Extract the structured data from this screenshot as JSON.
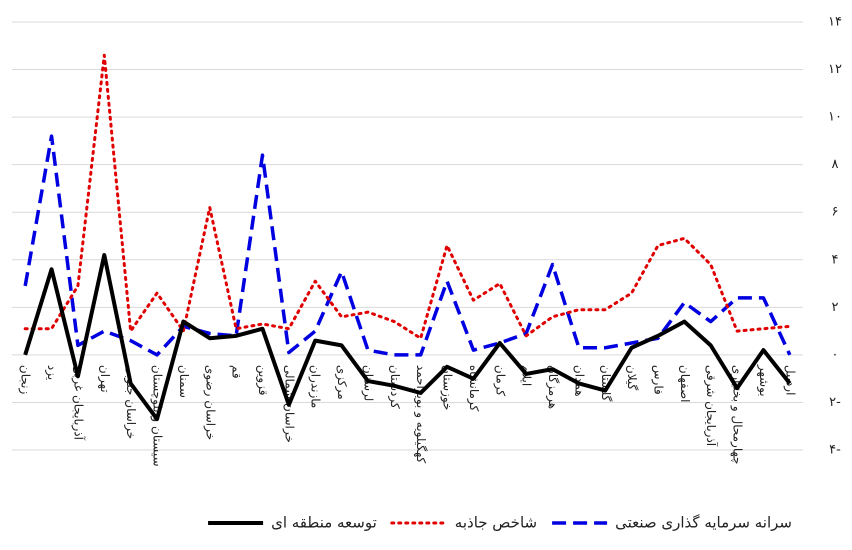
{
  "chart_data": {
    "type": "line",
    "categories": [
      "زنجان",
      "یزد",
      "آذربایجان غربی",
      "تهران",
      "خراسان جنوبی",
      "سیستان و بلوچستان",
      "سمنان",
      "خراسان رضوی",
      "قم",
      "قزوین",
      "خراسان شمالی",
      "مازندران",
      "مرکزی",
      "لرستان",
      "کردستان",
      "کهگیلویه و بویراحمد",
      "خوزستان",
      "کرمانشاه",
      "کرمان",
      "ایلام",
      "هرمزگان",
      "همدان",
      "گلستان",
      "گیلان",
      "فارس",
      "اصفهان",
      "آذربایجان شرقی",
      "چهارمحال و بختیاری",
      "بوشهر",
      "اردبیل"
    ],
    "series": [
      {
        "name": "سرانه سرمایه گذاری صنعتی",
        "color": "#0000e0",
        "dash": "dashed",
        "values": [
          2.9,
          9.2,
          0.4,
          1.0,
          0.6,
          0.0,
          1.2,
          0.9,
          0.8,
          8.4,
          0.1,
          1.0,
          3.5,
          0.2,
          0.0,
          0.0,
          3.1,
          0.2,
          0.5,
          0.9,
          3.8,
          0.3,
          0.3,
          0.5,
          0.7,
          2.2,
          1.4,
          2.4,
          2.4,
          0.0
        ]
      },
      {
        "name": "شاخص جاذبه",
        "color": "#e00000",
        "dash": "dotted",
        "values": [
          1.1,
          1.1,
          2.9,
          12.6,
          1.0,
          2.6,
          1.0,
          6.2,
          1.1,
          1.3,
          1.1,
          3.1,
          1.6,
          1.8,
          1.4,
          0.7,
          4.6,
          2.3,
          3.0,
          0.8,
          1.6,
          1.9,
          1.9,
          2.6,
          4.6,
          4.9,
          3.8,
          1.0,
          1.1,
          1.2
        ]
      },
      {
        "name": "توسعه منطقه ای",
        "color": "#000000",
        "dash": "solid",
        "values": [
          0.0,
          3.6,
          -0.9,
          4.2,
          -1.2,
          -2.7,
          1.4,
          0.7,
          0.8,
          1.1,
          -2.1,
          0.6,
          0.4,
          -1.1,
          -1.3,
          -1.6,
          -0.5,
          -1.0,
          0.5,
          -0.8,
          -0.6,
          -1.2,
          -1.5,
          0.3,
          0.8,
          1.4,
          0.4,
          -1.4,
          0.2,
          -1.2
        ]
      }
    ],
    "ylim": [
      -4,
      14
    ],
    "yticks": [
      {
        "value": -4,
        "label": "۴-"
      },
      {
        "value": -2,
        "label": "۲-"
      },
      {
        "value": 0,
        "label": "۰"
      },
      {
        "value": 2,
        "label": "۲"
      },
      {
        "value": 4,
        "label": "۴"
      },
      {
        "value": 6,
        "label": "۶"
      },
      {
        "value": 8,
        "label": "۸"
      },
      {
        "value": 10,
        "label": "۱۰"
      },
      {
        "value": 12,
        "label": "۱۲"
      },
      {
        "value": 14,
        "label": "۱۴"
      }
    ],
    "grid": true
  }
}
